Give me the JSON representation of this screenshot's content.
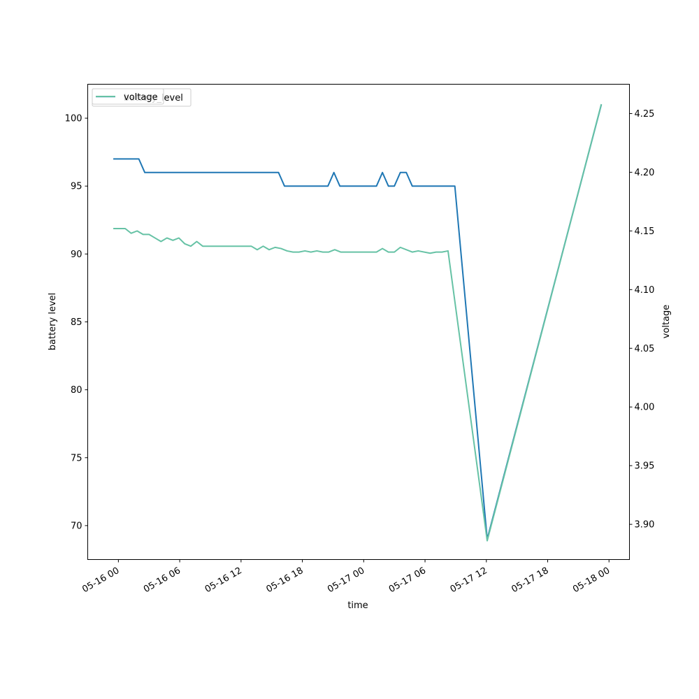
{
  "chart_data": {
    "type": "line",
    "xlabel": "time",
    "ylabel_left": "battery level",
    "ylabel_right": "voltage",
    "xlim": [
      "2024-05-15 21:00",
      "2024-05-18 02:00"
    ],
    "ylim_left": [
      67.5,
      102.5
    ],
    "ylim_right": [
      3.87,
      4.275
    ],
    "x_ticks": [
      "05-16 00",
      "05-16 06",
      "05-16 12",
      "05-16 18",
      "05-17 00",
      "05-17 06",
      "05-17 12",
      "05-17 18",
      "05-18 00"
    ],
    "y_ticks_left": [
      "70",
      "75",
      "80",
      "85",
      "90",
      "95",
      "100"
    ],
    "y_ticks_right": [
      "3.90",
      "3.95",
      "4.00",
      "4.05",
      "4.10",
      "4.15",
      "4.20",
      "4.25"
    ],
    "legend": {
      "placement": "upper left",
      "entries": [
        "battery_level",
        "voltage"
      ]
    },
    "series": [
      {
        "name": "battery_level",
        "axis": "left",
        "color": "#1f77b4",
        "points": [
          [
            "2024-05-15 23:30",
            97
          ],
          [
            "2024-05-16 02:00",
            97
          ],
          [
            "2024-05-16 02:35",
            96
          ],
          [
            "2024-05-16 15:40",
            96
          ],
          [
            "2024-05-16 16:15",
            95
          ],
          [
            "2024-05-16 20:30",
            95
          ],
          [
            "2024-05-16 21:05",
            96
          ],
          [
            "2024-05-16 21:40",
            95
          ],
          [
            "2024-05-17 01:15",
            95
          ],
          [
            "2024-05-17 01:50",
            96
          ],
          [
            "2024-05-17 02:25",
            95
          ],
          [
            "2024-05-17 03:00",
            95
          ],
          [
            "2024-05-17 03:35",
            96
          ],
          [
            "2024-05-17 04:10",
            96
          ],
          [
            "2024-05-17 04:45",
            95
          ],
          [
            "2024-05-17 08:55",
            95
          ],
          [
            "2024-05-17 12:05",
            69
          ],
          [
            "2024-05-17 23:15",
            101
          ]
        ]
      },
      {
        "name": "voltage",
        "axis": "right",
        "color": "#66c2a5",
        "points": [
          [
            "2024-05-15 23:30",
            4.152
          ],
          [
            "2024-05-16 00:40",
            4.152
          ],
          [
            "2024-05-16 01:15",
            4.148
          ],
          [
            "2024-05-16 01:50",
            4.15
          ],
          [
            "2024-05-16 02:25",
            4.147
          ],
          [
            "2024-05-16 03:00",
            4.147
          ],
          [
            "2024-05-16 03:35",
            4.144
          ],
          [
            "2024-05-16 04:10",
            4.141
          ],
          [
            "2024-05-16 04:45",
            4.144
          ],
          [
            "2024-05-16 05:20",
            4.142
          ],
          [
            "2024-05-16 05:55",
            4.144
          ],
          [
            "2024-05-16 06:30",
            4.139
          ],
          [
            "2024-05-16 07:05",
            4.137
          ],
          [
            "2024-05-16 07:40",
            4.141
          ],
          [
            "2024-05-16 08:15",
            4.137
          ],
          [
            "2024-05-16 13:00",
            4.137
          ],
          [
            "2024-05-16 13:35",
            4.134
          ],
          [
            "2024-05-16 14:10",
            4.137
          ],
          [
            "2024-05-16 14:45",
            4.134
          ],
          [
            "2024-05-16 15:20",
            4.136
          ],
          [
            "2024-05-16 15:55",
            4.135
          ],
          [
            "2024-05-16 16:30",
            4.133
          ],
          [
            "2024-05-16 17:05",
            4.132
          ],
          [
            "2024-05-16 17:40",
            4.132
          ],
          [
            "2024-05-16 18:15",
            4.133
          ],
          [
            "2024-05-16 18:50",
            4.132
          ],
          [
            "2024-05-16 19:25",
            4.133
          ],
          [
            "2024-05-16 20:00",
            4.132
          ],
          [
            "2024-05-16 20:35",
            4.132
          ],
          [
            "2024-05-16 21:10",
            4.134
          ],
          [
            "2024-05-16 21:45",
            4.132
          ],
          [
            "2024-05-17 01:15",
            4.132
          ],
          [
            "2024-05-17 01:50",
            4.135
          ],
          [
            "2024-05-17 02:25",
            4.132
          ],
          [
            "2024-05-17 03:00",
            4.132
          ],
          [
            "2024-05-17 03:35",
            4.136
          ],
          [
            "2024-05-17 04:45",
            4.132
          ],
          [
            "2024-05-17 05:20",
            4.133
          ],
          [
            "2024-05-17 06:30",
            4.131
          ],
          [
            "2024-05-17 07:05",
            4.132
          ],
          [
            "2024-05-17 07:40",
            4.132
          ],
          [
            "2024-05-17 08:15",
            4.133
          ],
          [
            "2024-05-17 12:05",
            3.886
          ],
          [
            "2024-05-17 23:15",
            4.258
          ]
        ]
      }
    ],
    "grid": false
  }
}
